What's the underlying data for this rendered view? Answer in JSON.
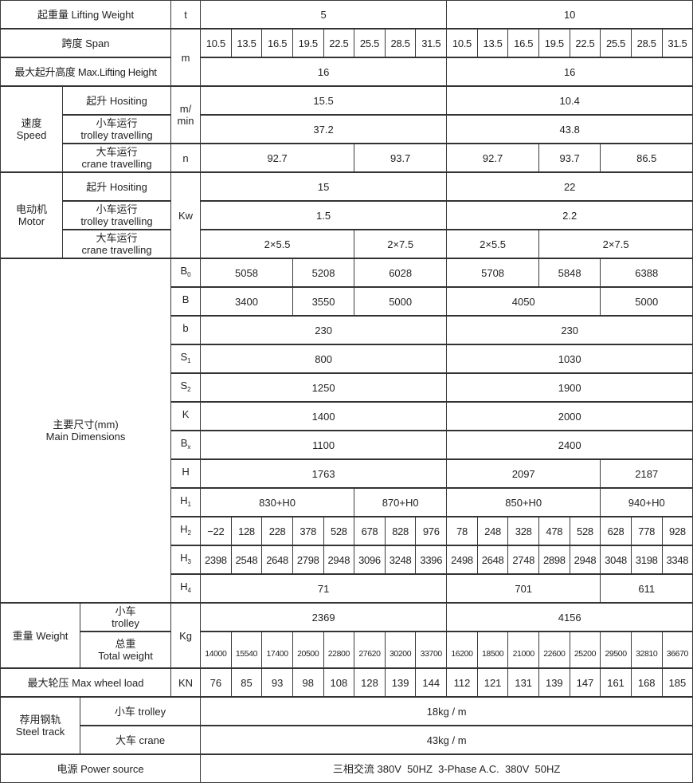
{
  "table": {
    "lifting_weight": {
      "label": "起重量 Lifting Weight",
      "unit": "t",
      "values": [
        {
          "v": "5",
          "span": 8
        },
        {
          "v": "10",
          "span": 8
        }
      ]
    },
    "span": {
      "label": "跨度 Span",
      "unit": "m",
      "values": [
        {
          "v": "10.5",
          "span": 1
        },
        {
          "v": "13.5",
          "span": 1
        },
        {
          "v": "16.5",
          "span": 1
        },
        {
          "v": "19.5",
          "span": 1
        },
        {
          "v": "22.5",
          "span": 1
        },
        {
          "v": "25.5",
          "span": 1
        },
        {
          "v": "28.5",
          "span": 1
        },
        {
          "v": "31.5",
          "span": 1
        },
        {
          "v": "10.5",
          "span": 1
        },
        {
          "v": "13.5",
          "span": 1
        },
        {
          "v": "16.5",
          "span": 1
        },
        {
          "v": "19.5",
          "span": 1
        },
        {
          "v": "22.5",
          "span": 1
        },
        {
          "v": "25.5",
          "span": 1
        },
        {
          "v": "28.5",
          "span": 1
        },
        {
          "v": "31.5",
          "span": 1
        }
      ]
    },
    "max_height": {
      "label": "最大起升高度 Max.Lifting Height",
      "values": [
        {
          "v": "16",
          "span": 8
        },
        {
          "v": "16",
          "span": 8
        }
      ]
    },
    "speed": {
      "group": {
        "cn": "速度",
        "en": "Speed"
      },
      "unit": "m/ min",
      "hoisting": {
        "label": "起升 Hositing",
        "values": [
          {
            "v": "15.5",
            "span": 8
          },
          {
            "v": "10.4",
            "span": 8
          }
        ]
      },
      "trolley": {
        "label": {
          "cn": "小车运行",
          "en": "trolley travelling"
        },
        "values": [
          {
            "v": "37.2",
            "span": 8
          },
          {
            "v": "43.8",
            "span": 8
          }
        ]
      },
      "crane": {
        "label": {
          "cn": "大车运行",
          "en": "crane travelling"
        },
        "unit": "n",
        "values": [
          {
            "v": "92.7",
            "span": 5
          },
          {
            "v": "93.7",
            "span": 3
          },
          {
            "v": "92.7",
            "span": 3
          },
          {
            "v": "93.7",
            "span": 2
          },
          {
            "v": "86.5",
            "span": 3
          }
        ]
      }
    },
    "motor": {
      "group": {
        "cn": "电动机",
        "en": "Motor"
      },
      "unit": "Kw",
      "hoisting": {
        "label": "起升 Hositing",
        "values": [
          {
            "v": "15",
            "span": 8
          },
          {
            "v": "22",
            "span": 8
          }
        ]
      },
      "trolley": {
        "label": {
          "cn": "小车运行",
          "en": "trolley travelling"
        },
        "values": [
          {
            "v": "1.5",
            "span": 8
          },
          {
            "v": "2.2",
            "span": 8
          }
        ]
      },
      "crane": {
        "label": {
          "cn": "大车运行",
          "en": "crane travelling"
        },
        "values": [
          {
            "v": "2×5.5",
            "span": 5
          },
          {
            "v": "2×7.5",
            "span": 3
          },
          {
            "v": "2×5.5",
            "span": 3
          },
          {
            "v": "2×7.5",
            "span": 5
          }
        ]
      }
    },
    "main_dimensions": {
      "group": {
        "cn": "主要尺寸(mm)",
        "en": "Main Dimensions"
      },
      "rows": [
        {
          "sym": "B",
          "sub": "0",
          "values": [
            {
              "v": "5058",
              "span": 3
            },
            {
              "v": "5208",
              "span": 2
            },
            {
              "v": "6028",
              "span": 3
            },
            {
              "v": "5708",
              "span": 3
            },
            {
              "v": "5848",
              "span": 2
            },
            {
              "v": "6388",
              "span": 3
            }
          ]
        },
        {
          "sym": "B",
          "sub": "",
          "values": [
            {
              "v": "3400",
              "span": 3
            },
            {
              "v": "3550",
              "span": 2
            },
            {
              "v": "5000",
              "span": 3
            },
            {
              "v": "4050",
              "span": 5
            },
            {
              "v": "5000",
              "span": 3
            }
          ]
        },
        {
          "sym": "b",
          "sub": "",
          "values": [
            {
              "v": "230",
              "span": 8
            },
            {
              "v": "230",
              "span": 8
            }
          ]
        },
        {
          "sym": "S",
          "sub": "1",
          "values": [
            {
              "v": "800",
              "span": 8
            },
            {
              "v": "1030",
              "span": 8
            }
          ]
        },
        {
          "sym": "S",
          "sub": "2",
          "values": [
            {
              "v": "1250",
              "span": 8
            },
            {
              "v": "1900",
              "span": 8
            }
          ]
        },
        {
          "sym": "K",
          "sub": "",
          "values": [
            {
              "v": "1400",
              "span": 8
            },
            {
              "v": "2000",
              "span": 8
            }
          ]
        },
        {
          "sym": "B",
          "sub": "x",
          "values": [
            {
              "v": "1100",
              "span": 8
            },
            {
              "v": "2400",
              "span": 8
            }
          ]
        },
        {
          "sym": "H",
          "sub": "",
          "values": [
            {
              "v": "1763",
              "span": 8
            },
            {
              "v": "2097",
              "span": 5
            },
            {
              "v": "2187",
              "span": 3
            }
          ]
        },
        {
          "sym": "H",
          "sub": "1",
          "values": [
            {
              "v": "830+H0",
              "span": 5
            },
            {
              "v": "870+H0",
              "span": 3
            },
            {
              "v": "850+H0",
              "span": 5
            },
            {
              "v": "940+H0",
              "span": 3
            }
          ]
        },
        {
          "sym": "H",
          "sub": "2",
          "values": [
            {
              "v": "−22",
              "span": 1
            },
            {
              "v": "128",
              "span": 1
            },
            {
              "v": "228",
              "span": 1
            },
            {
              "v": "378",
              "span": 1
            },
            {
              "v": "528",
              "span": 1
            },
            {
              "v": "678",
              "span": 1
            },
            {
              "v": "828",
              "span": 1
            },
            {
              "v": "976",
              "span": 1
            },
            {
              "v": "78",
              "span": 1
            },
            {
              "v": "248",
              "span": 1
            },
            {
              "v": "328",
              "span": 1
            },
            {
              "v": "478",
              "span": 1
            },
            {
              "v": "528",
              "span": 1
            },
            {
              "v": "628",
              "span": 1
            },
            {
              "v": "778",
              "span": 1
            },
            {
              "v": "928",
              "span": 1
            }
          ]
        },
        {
          "sym": "H",
          "sub": "3",
          "values": [
            {
              "v": "2398",
              "span": 1
            },
            {
              "v": "2548",
              "span": 1
            },
            {
              "v": "2648",
              "span": 1
            },
            {
              "v": "2798",
              "span": 1
            },
            {
              "v": "2948",
              "span": 1
            },
            {
              "v": "3096",
              "span": 1
            },
            {
              "v": "3248",
              "span": 1
            },
            {
              "v": "3396",
              "span": 1
            },
            {
              "v": "2498",
              "span": 1
            },
            {
              "v": "2648",
              "span": 1
            },
            {
              "v": "2748",
              "span": 1
            },
            {
              "v": "2898",
              "span": 1
            },
            {
              "v": "2948",
              "span": 1
            },
            {
              "v": "3048",
              "span": 1
            },
            {
              "v": "3198",
              "span": 1
            },
            {
              "v": "3348",
              "span": 1
            }
          ]
        },
        {
          "sym": "H",
          "sub": "4",
          "values": [
            {
              "v": "71",
              "span": 8
            },
            {
              "v": "701",
              "span": 5
            },
            {
              "v": "611",
              "span": 3
            }
          ]
        }
      ]
    },
    "weight": {
      "group": "重量 Weight",
      "unit": "Kg",
      "trolley": {
        "label": {
          "cn": "小车",
          "en": "trolley"
        },
        "values": [
          {
            "v": "2369",
            "span": 8
          },
          {
            "v": "4156",
            "span": 8
          }
        ]
      },
      "total": {
        "label": {
          "cn": "总重",
          "en": "Total weight"
        },
        "values": [
          {
            "v": "14000",
            "span": 1
          },
          {
            "v": "15540",
            "span": 1
          },
          {
            "v": "17400",
            "span": 1
          },
          {
            "v": "20500",
            "span": 1
          },
          {
            "v": "22800",
            "span": 1
          },
          {
            "v": "27620",
            "span": 1
          },
          {
            "v": "30200",
            "span": 1
          },
          {
            "v": "33700",
            "span": 1
          },
          {
            "v": "16200",
            "span": 1
          },
          {
            "v": "18500",
            "span": 1
          },
          {
            "v": "21000",
            "span": 1
          },
          {
            "v": "22600",
            "span": 1
          },
          {
            "v": "25200",
            "span": 1
          },
          {
            "v": "29500",
            "span": 1
          },
          {
            "v": "32810",
            "span": 1
          },
          {
            "v": "36670",
            "span": 1
          }
        ]
      }
    },
    "wheel_load": {
      "label": "最大轮压 Max wheel load",
      "unit": "KN",
      "values": [
        {
          "v": "76",
          "span": 1
        },
        {
          "v": "85",
          "span": 1
        },
        {
          "v": "93",
          "span": 1
        },
        {
          "v": "98",
          "span": 1
        },
        {
          "v": "108",
          "span": 1
        },
        {
          "v": "128",
          "span": 1
        },
        {
          "v": "139",
          "span": 1
        },
        {
          "v": "144",
          "span": 1
        },
        {
          "v": "112",
          "span": 1
        },
        {
          "v": "121",
          "span": 1
        },
        {
          "v": "131",
          "span": 1
        },
        {
          "v": "139",
          "span": 1
        },
        {
          "v": "147",
          "span": 1
        },
        {
          "v": "161",
          "span": 1
        },
        {
          "v": "168",
          "span": 1
        },
        {
          "v": "185",
          "span": 1
        }
      ]
    },
    "steel_track": {
      "group": {
        "cn": "荐用钢轨",
        "en": "Steel track"
      },
      "trolley": {
        "label": "小车 trolley",
        "values": [
          {
            "v": "18kg / m",
            "span": 16
          }
        ]
      },
      "crane": {
        "label": "大车 crane",
        "values": [
          {
            "v": "43kg / m",
            "span": 16
          }
        ]
      }
    },
    "power": {
      "label": "电源 Power source",
      "values": [
        {
          "v": "三相交流 380V  50HZ  3-Phase A.C.  380V  50HZ",
          "span": 16
        }
      ]
    }
  }
}
